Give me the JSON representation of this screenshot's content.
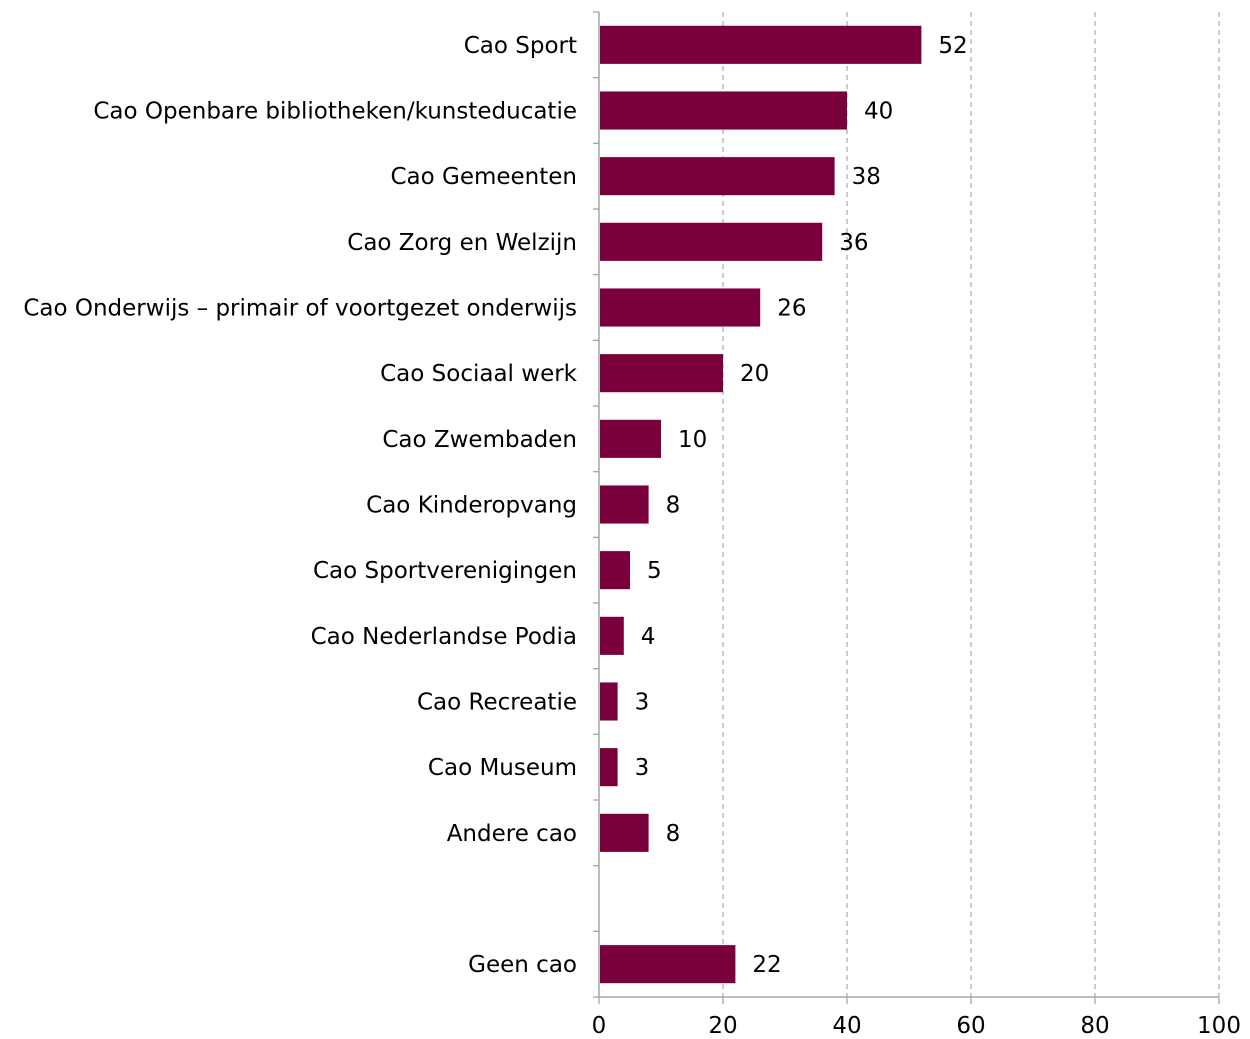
{
  "chart_data": {
    "type": "bar",
    "orientation": "horizontal",
    "categories": [
      "Cao Sport",
      "Cao Openbare bibliotheken/kunsteducatie",
      "Cao Gemeenten",
      "Cao Zorg en Welzijn",
      "Cao Onderwijs – primair of voortgezet onderwijs",
      "Cao Sociaal werk",
      "Cao Zwembaden",
      "Cao Kinderopvang",
      "Cao Sportverenigingen",
      "Cao Nederlandse Podia",
      "Cao Recreatie",
      "Cao Museum",
      "Andere cao",
      "",
      "Geen cao"
    ],
    "values": [
      52,
      40,
      38,
      36,
      26,
      20,
      10,
      8,
      5,
      4,
      3,
      3,
      8,
      null,
      22
    ],
    "value_labels": [
      "52",
      "40",
      "38",
      "36",
      "26",
      "20",
      "10",
      "8",
      "5",
      "4",
      "3",
      "3",
      "8",
      "",
      "22"
    ],
    "xlim": [
      0,
      100
    ],
    "xticks": [
      0,
      20,
      40,
      60,
      80,
      100
    ],
    "xtick_labels": [
      "0",
      "20",
      "40",
      "60",
      "80",
      "100"
    ],
    "grid": "vertical dashed",
    "bar_color": "#7a003c",
    "title": "",
    "xlabel": "",
    "ylabel": ""
  }
}
